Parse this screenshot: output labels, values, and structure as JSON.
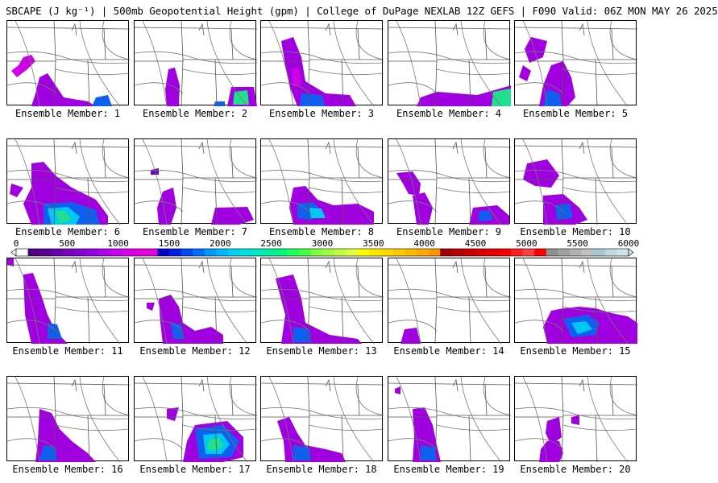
{
  "title": "SBCAPE (J kg⁻¹) | 500mb Geopotential Height (gpm) | College of DuPage NEXLAB 12Z GEFS | F090 Valid: 06Z MON MAY 26 2025",
  "panels": [
    {
      "label": "Ensemble Member: 1"
    },
    {
      "label": "Ensemble Member: 2"
    },
    {
      "label": "Ensemble Member: 3"
    },
    {
      "label": "Ensemble Member: 4"
    },
    {
      "label": "Ensemble Member: 5"
    },
    {
      "label": "Ensemble Member: 6"
    },
    {
      "label": "Ensemble Member: 7"
    },
    {
      "label": "Ensemble Member: 8"
    },
    {
      "label": "Ensemble Member: 9"
    },
    {
      "label": "Ensemble Member: 10"
    },
    {
      "label": "Ensemble Member: 11"
    },
    {
      "label": "Ensemble Member: 12"
    },
    {
      "label": "Ensemble Member: 13"
    },
    {
      "label": "Ensemble Member: 14"
    },
    {
      "label": "Ensemble Member: 15"
    },
    {
      "label": "Ensemble Member: 16"
    },
    {
      "label": "Ensemble Member: 17"
    },
    {
      "label": "Ensemble Member: 18"
    },
    {
      "label": "Ensemble Member: 19"
    },
    {
      "label": "Ensemble Member: 20"
    }
  ],
  "colorbar": {
    "ticks": [
      "0",
      "500",
      "1000",
      "1500",
      "2000",
      "2500",
      "3000",
      "3500",
      "4000",
      "4500",
      "5000",
      "5500",
      "6000"
    ],
    "colors": [
      "#ffffff",
      "#4b0082",
      "#5a0096",
      "#6a00aa",
      "#7a00be",
      "#8a00d2",
      "#9a00e6",
      "#b000f0",
      "#c800f0",
      "#d800e8",
      "#e000e0",
      "#e800d8",
      "#0000c8",
      "#0020e0",
      "#0048f0",
      "#0070f8",
      "#0098ff",
      "#00b8ff",
      "#00d0f0",
      "#00e0e0",
      "#00e8c0",
      "#00f0a0",
      "#00f880",
      "#20ff60",
      "#40ff40",
      "#80ff40",
      "#a0ff40",
      "#c0ff40",
      "#e0ff40",
      "#ffff00",
      "#ffe800",
      "#ffd800",
      "#ffc800",
      "#ffb800",
      "#ffa800",
      "#ff9800",
      "#a00000",
      "#b80000",
      "#c80000",
      "#d80000",
      "#e80000",
      "#f80000",
      "#ff2020",
      "#ff4040",
      "#ff0000",
      "#909090",
      "#a0a0a0",
      "#b0b0b0",
      "#c0c0c0",
      "#a8c8d0",
      "#c0d8e0",
      "#d0e4ec"
    ]
  }
}
